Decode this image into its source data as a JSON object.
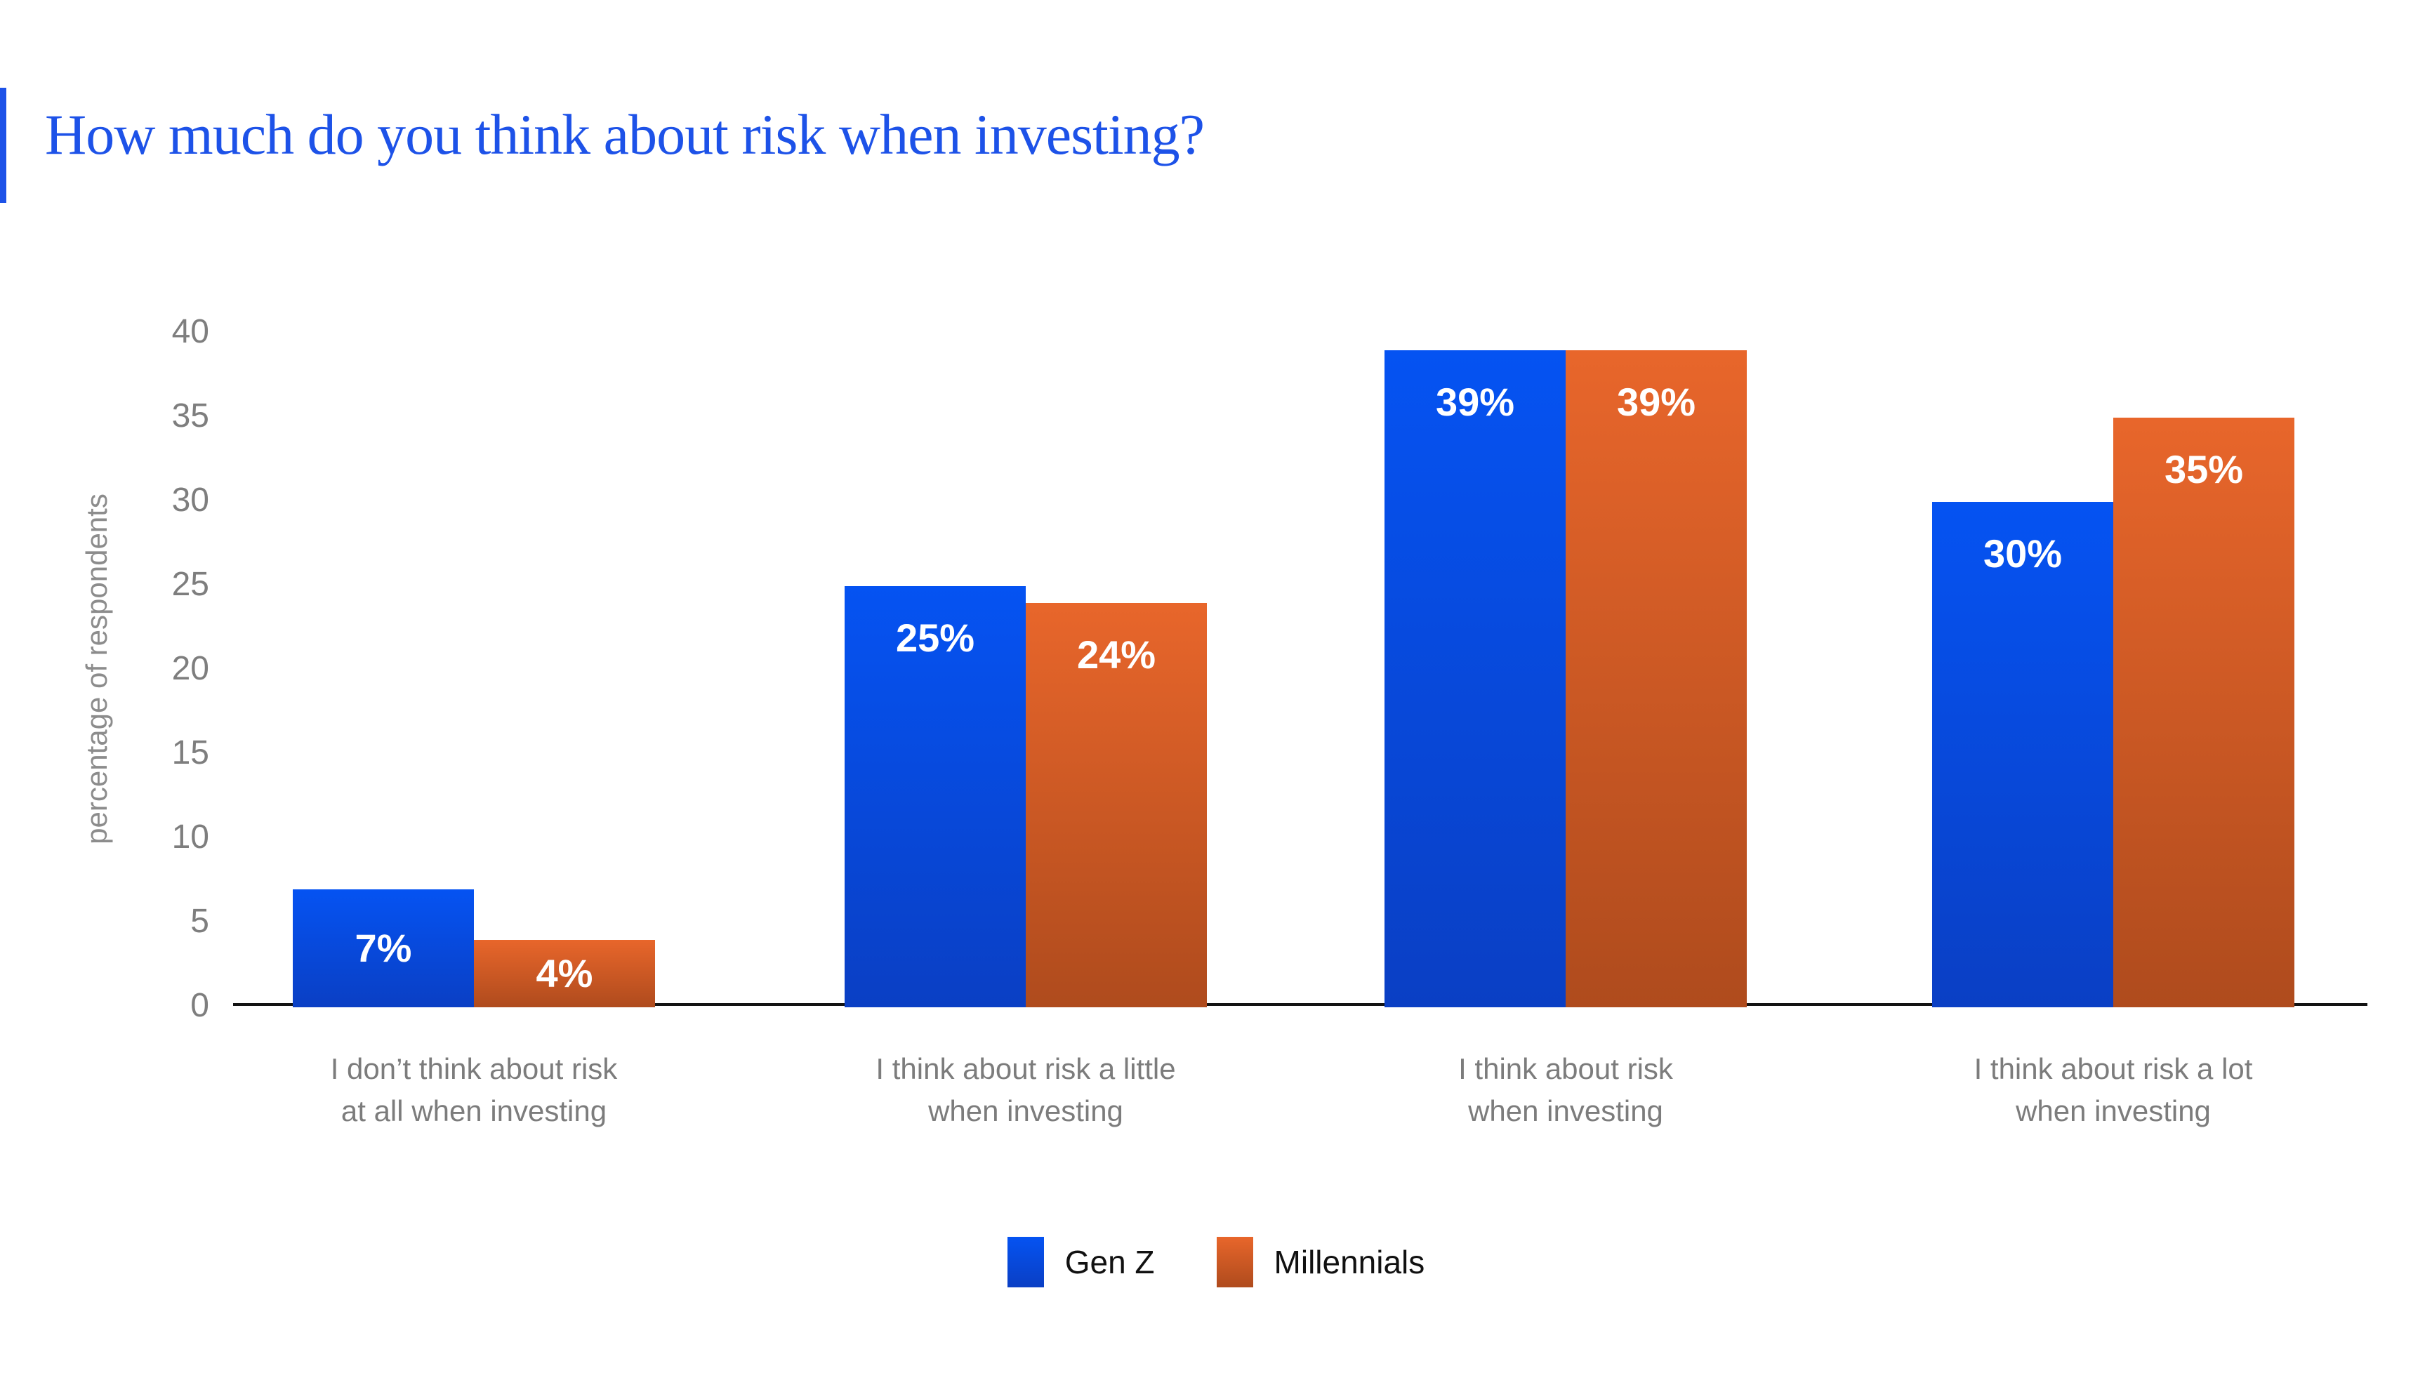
{
  "title": "How much do you think about risk when investing?",
  "colors": {
    "title_blue": "#1d52e8",
    "accent_bar": "#1d52e8",
    "axis_line": "#131313",
    "tick_gray": "#7e7e7e",
    "category_gray": "#7c7c7c",
    "ylabel_gray": "#8c8c8c",
    "value_label_white": "#ffffff",
    "legend_text": "#111111",
    "gen_z_gradient_top": "#0553f2",
    "gen_z_gradient_bottom": "#0a3fc4",
    "millennials_gradient_top": "#e8662b",
    "millennials_gradient_bottom": "#af4b1d"
  },
  "chart_data": {
    "type": "bar",
    "title": "How much do you think about risk when investing?",
    "categories": [
      [
        "I don’t think about risk",
        "at all when investing"
      ],
      [
        "I think about risk a little",
        "when investing"
      ],
      [
        "I think about risk",
        "when investing"
      ],
      [
        "I think about risk a lot",
        "when investing"
      ]
    ],
    "series": [
      {
        "name": "Gen Z",
        "values": [
          7,
          25,
          39,
          30
        ]
      },
      {
        "name": "Millennials",
        "values": [
          4,
          24,
          39,
          35
        ]
      }
    ],
    "value_suffix": "%",
    "xlabel": "",
    "ylabel": "percentage of respondents",
    "ylim": [
      0,
      40
    ],
    "yticks": [
      0,
      5,
      10,
      15,
      20,
      25,
      30,
      35,
      40
    ],
    "grid": false,
    "legend_position": "bottom",
    "legend": [
      "Gen Z",
      "Millennials"
    ]
  }
}
